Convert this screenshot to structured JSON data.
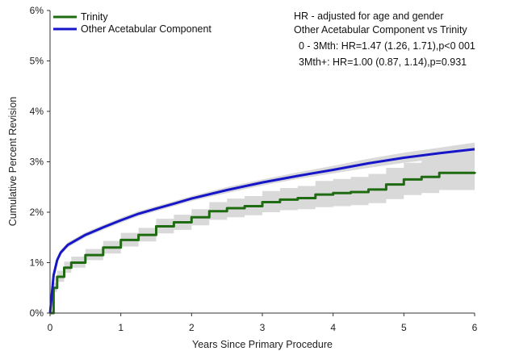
{
  "chart_data": {
    "type": "line",
    "xlabel": "Years Since Primary Procedure",
    "ylabel": "Cumulative Percent Revision",
    "xlim": [
      0,
      6
    ],
    "ylim": [
      0,
      6
    ],
    "x_ticks": [
      "0",
      "1",
      "2",
      "3",
      "4",
      "5",
      "6"
    ],
    "y_ticks": [
      "0%",
      "1%",
      "2%",
      "3%",
      "4%",
      "5%",
      "6%"
    ],
    "grid": false,
    "legend": "top-left",
    "annotation": [
      "HR - adjusted for age and gender",
      "Other Acetabular Component vs Trinity",
      "0 - 3Mth: HR=1.47 (1.26, 1.71),p<0 001",
      "3Mth+: HR=1.00 (0.87, 1.14),p=0.931"
    ],
    "series": [
      {
        "name": "Trinity",
        "color": "#1f6b12",
        "step": true,
        "x": [
          0,
          0.05,
          0.1,
          0.2,
          0.3,
          0.5,
          0.75,
          1,
          1.25,
          1.5,
          1.75,
          2,
          2.25,
          2.5,
          2.75,
          3,
          3.25,
          3.5,
          3.75,
          4,
          4.25,
          4.5,
          4.75,
          5,
          5.25,
          5.5,
          6
        ],
        "y": [
          0,
          0.5,
          0.72,
          0.9,
          1.0,
          1.15,
          1.3,
          1.45,
          1.55,
          1.72,
          1.8,
          1.9,
          2.02,
          2.08,
          2.12,
          2.2,
          2.25,
          2.28,
          2.35,
          2.38,
          2.4,
          2.45,
          2.55,
          2.65,
          2.7,
          2.78,
          2.8
        ],
        "ci_lower": [
          0,
          0.42,
          0.62,
          0.8,
          0.9,
          1.05,
          1.18,
          1.32,
          1.42,
          1.58,
          1.65,
          1.74,
          1.85,
          1.9,
          1.94,
          2.0,
          2.04,
          2.06,
          2.1,
          2.12,
          2.14,
          2.18,
          2.26,
          2.34,
          2.38,
          2.44,
          2.46
        ],
        "ci_upper": [
          0,
          0.6,
          0.84,
          1.02,
          1.12,
          1.27,
          1.43,
          1.59,
          1.69,
          1.87,
          1.95,
          2.06,
          2.2,
          2.27,
          2.32,
          2.42,
          2.48,
          2.52,
          2.62,
          2.66,
          2.7,
          2.76,
          2.88,
          2.98,
          3.06,
          3.16,
          3.2
        ]
      },
      {
        "name": "Other Acetabular Component",
        "color": "#1616c8",
        "step": false,
        "x": [
          0,
          0.05,
          0.1,
          0.15,
          0.25,
          0.5,
          0.75,
          1,
          1.25,
          1.5,
          1.75,
          2,
          2.5,
          3,
          3.5,
          4,
          4.5,
          5,
          5.5,
          6
        ],
        "y": [
          0,
          0.75,
          1.05,
          1.2,
          1.35,
          1.55,
          1.7,
          1.84,
          1.97,
          2.07,
          2.17,
          2.27,
          2.44,
          2.59,
          2.72,
          2.84,
          2.97,
          3.08,
          3.17,
          3.25
        ],
        "ci_lower": [
          0,
          0.7,
          1.0,
          1.15,
          1.3,
          1.5,
          1.65,
          1.79,
          1.92,
          2.02,
          2.12,
          2.22,
          2.38,
          2.53,
          2.66,
          2.77,
          2.88,
          2.98,
          3.06,
          3.12
        ],
        "ci_upper": [
          0,
          0.8,
          1.1,
          1.25,
          1.4,
          1.6,
          1.75,
          1.89,
          2.02,
          2.12,
          2.22,
          2.32,
          2.5,
          2.65,
          2.79,
          2.92,
          3.06,
          3.18,
          3.28,
          3.38
        ]
      }
    ]
  }
}
